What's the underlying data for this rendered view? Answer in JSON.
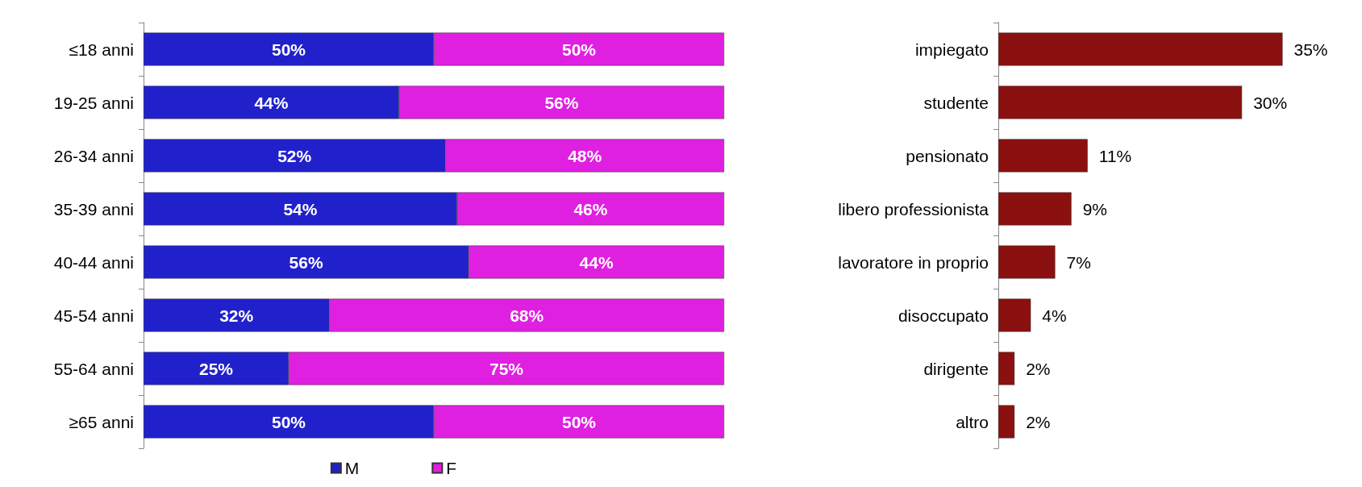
{
  "chart_data": [
    {
      "type": "bar",
      "orientation": "horizontal",
      "stacked": true,
      "legend": "bottom",
      "categories": [
        "≤18 anni",
        "19-25 anni",
        "26-34 anni",
        "35-39 anni",
        "40-44 anni",
        "45-54 anni",
        "55-64 anni",
        "≥65 anni"
      ],
      "series": [
        {
          "name": "M",
          "color": "#2121cc",
          "values": [
            50,
            44,
            52,
            54,
            56,
            32,
            25,
            50
          ],
          "value_labels": [
            "50%",
            "44%",
            "52%",
            "54%",
            "56%",
            "32%",
            "25%",
            "50%"
          ]
        },
        {
          "name": "F",
          "color": "#e020e0",
          "values": [
            50,
            56,
            48,
            46,
            44,
            68,
            75,
            50
          ],
          "value_labels": [
            "50%",
            "56%",
            "48%",
            "46%",
            "44%",
            "68%",
            "75%",
            "50%"
          ]
        }
      ]
    },
    {
      "type": "bar",
      "orientation": "horizontal",
      "categories": [
        "impiegato",
        "studente",
        "pensionato",
        "libero professionista",
        "lavoratore in proprio",
        "disoccupato",
        "dirigente",
        "altro"
      ],
      "color": "#8b1010",
      "values": [
        35,
        30,
        11,
        9,
        7,
        4,
        2,
        2
      ],
      "value_labels": [
        "35%",
        "30%",
        "11%",
        "9%",
        "7%",
        "4%",
        "2%",
        "2%"
      ]
    }
  ]
}
